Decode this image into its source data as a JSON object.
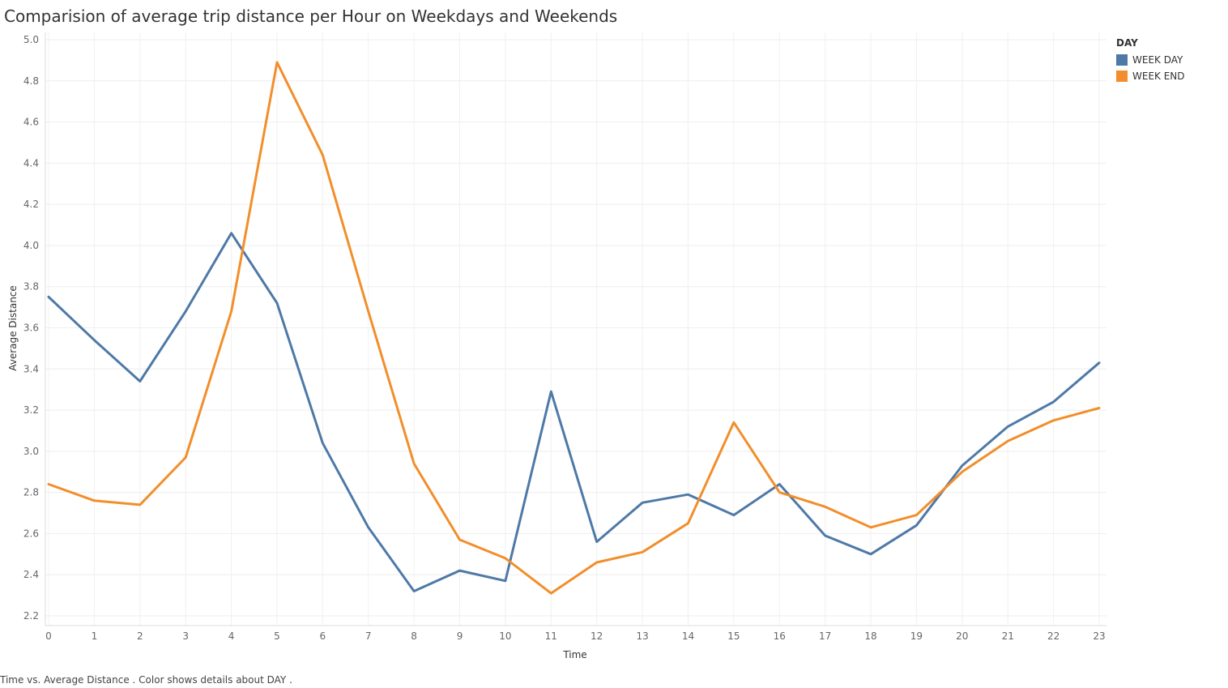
{
  "chart_data": {
    "type": "line",
    "title": "Comparision of average trip distance per Hour on Weekdays and Weekends",
    "xlabel": "Time",
    "ylabel": "Average Distance",
    "x": [
      0,
      1,
      2,
      3,
      4,
      5,
      6,
      7,
      8,
      9,
      10,
      11,
      12,
      13,
      14,
      15,
      16,
      17,
      18,
      19,
      20,
      21,
      22,
      23
    ],
    "ylim": [
      2.15,
      5.0
    ],
    "yticks": [
      2.2,
      2.4,
      2.6,
      2.8,
      3.0,
      3.2,
      3.4,
      3.6,
      3.8,
      4.0,
      4.2,
      4.4,
      4.6,
      4.8,
      5.0
    ],
    "grid": true,
    "legend_title": "DAY",
    "legend_position": "top-right",
    "series": [
      {
        "name": "WEEK DAY",
        "color": "#4e79a7",
        "values": [
          3.75,
          3.54,
          3.34,
          3.68,
          4.06,
          3.72,
          3.04,
          2.63,
          2.32,
          2.42,
          2.37,
          3.29,
          2.56,
          2.75,
          2.79,
          2.69,
          2.84,
          2.59,
          2.5,
          2.64,
          2.93,
          3.12,
          3.24,
          3.43
        ]
      },
      {
        "name": "WEEK END",
        "color": "#f28e2b",
        "values": [
          2.84,
          2.76,
          2.74,
          2.97,
          3.68,
          4.89,
          4.44,
          3.68,
          2.94,
          2.57,
          2.48,
          2.31,
          2.46,
          2.51,
          2.65,
          3.14,
          2.8,
          2.73,
          2.63,
          2.69,
          2.9,
          3.05,
          3.15,
          3.21
        ]
      }
    ]
  },
  "caption": "Time vs. Average Distance .  Color shows details about DAY ."
}
